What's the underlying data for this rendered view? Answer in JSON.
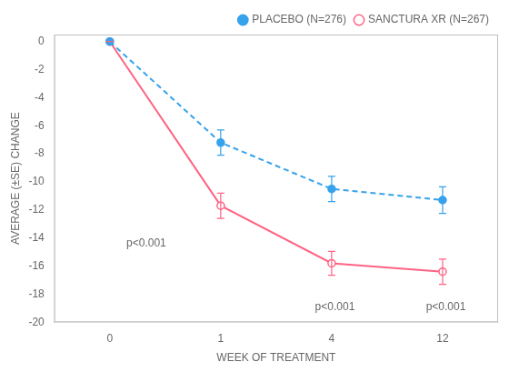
{
  "chart_data": {
    "type": "line",
    "categories": [
      "0",
      "1",
      "4",
      "12"
    ],
    "xlabel": "WEEK OF TREATMENT",
    "ylabel": "AVERAGE (±SE) CHANGE",
    "series": [
      {
        "name": "PLACEBO (N=276)",
        "values": [
          0,
          -7.2,
          -10.5,
          -11.3
        ],
        "errors": [
          0,
          0.9,
          0.9,
          0.95
        ],
        "line_style": "dashed",
        "marker": "circle"
      },
      {
        "name": "SANCTURA XR (N=267)",
        "values": [
          0,
          -11.7,
          -15.8,
          -16.4
        ],
        "errors": [
          0,
          0.9,
          0.85,
          0.9
        ],
        "line_style": "solid",
        "marker": "open_circle"
      }
    ],
    "ylim": [
      -20,
      0.5
    ],
    "yticks": [
      0,
      -2,
      -4,
      -6,
      -8,
      -10,
      -12,
      -14,
      -16,
      -18,
      -20
    ],
    "annotations": [
      {
        "x": 0.15,
        "y": -14.8,
        "text": "p<0.001"
      },
      {
        "x": 1.85,
        "y": -19.3,
        "text": "p<0.001"
      },
      {
        "x": 2.85,
        "y": -19.3,
        "text": "p<0.001"
      }
    ],
    "legend": "upper right",
    "grid": false
  }
}
